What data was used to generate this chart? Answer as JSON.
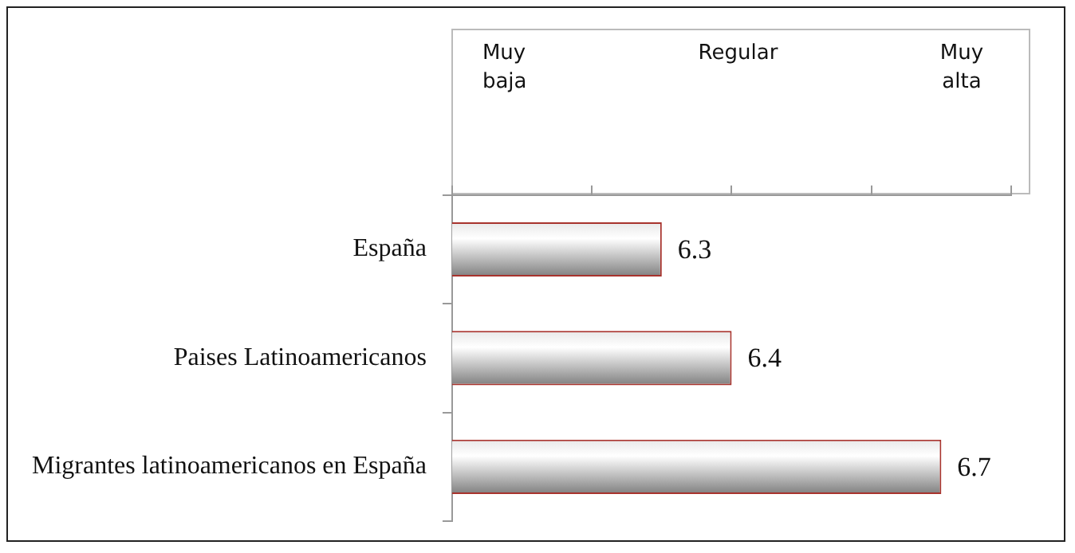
{
  "chart_data": {
    "type": "bar",
    "orientation": "horizontal",
    "categories": [
      "España",
      "Paises Latinoamericanos",
      "Migrantes latinoamericanos en España"
    ],
    "series": [
      {
        "color": "#808080",
        "values": [
          6.3,
          6.4,
          6.7
        ]
      }
    ],
    "xlim": [
      6.0,
      6.8
    ],
    "xticks": [
      {
        "value": 6.0,
        "label": null
      },
      {
        "value": 6.2,
        "label": null
      },
      {
        "value": 6.4,
        "label": null
      },
      {
        "value": 6.6,
        "label": null
      },
      {
        "value": 6.8,
        "label": null
      }
    ],
    "annotations": [
      "Muy baja",
      "Regular",
      "Muy alta"
    ],
    "data_labels": true,
    "grid": false,
    "legend": false
  }
}
